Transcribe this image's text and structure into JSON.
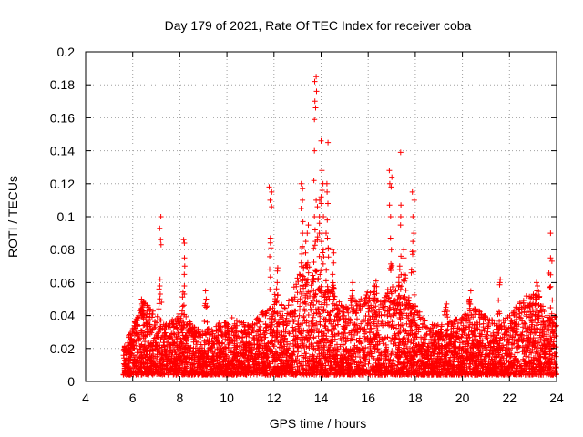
{
  "chart_data": {
    "type": "scatter",
    "title": "Day 179 of 2021, Rate Of TEC Index for receiver coba",
    "xlabel": "GPS time / hours",
    "ylabel": "ROTI / TECUs",
    "xlim": [
      4,
      24
    ],
    "ylim": [
      0,
      0.2
    ],
    "xticks": [
      "4",
      "6",
      "8",
      "10",
      "12",
      "14",
      "16",
      "18",
      "20",
      "22",
      "24"
    ],
    "yticks": [
      "0",
      "0.02",
      "0.04",
      "0.06",
      "0.08",
      "0.1",
      "0.12",
      "0.14",
      "0.16",
      "0.18",
      "0.2"
    ],
    "grid": true,
    "marker": "+",
    "series": [
      {
        "color": "#ff0000",
        "baseline": {
          "x_start": 5.6,
          "x_end": 24.0,
          "typical_y_range": [
            0.005,
            0.03
          ],
          "envelope": [
            [
              5.6,
              0.02
            ],
            [
              6.0,
              0.035
            ],
            [
              6.5,
              0.05
            ],
            [
              7.0,
              0.04
            ],
            [
              7.5,
              0.035
            ],
            [
              8.0,
              0.045
            ],
            [
              8.5,
              0.035
            ],
            [
              9.0,
              0.03
            ],
            [
              10.0,
              0.04
            ],
            [
              11.0,
              0.035
            ],
            [
              12.0,
              0.05
            ],
            [
              12.5,
              0.045
            ],
            [
              13.0,
              0.065
            ],
            [
              13.5,
              0.07
            ],
            [
              14.0,
              0.06
            ],
            [
              14.5,
              0.055
            ],
            [
              15.0,
              0.045
            ],
            [
              15.5,
              0.05
            ],
            [
              16.0,
              0.055
            ],
            [
              16.5,
              0.05
            ],
            [
              17.0,
              0.06
            ],
            [
              17.5,
              0.055
            ],
            [
              18.0,
              0.05
            ],
            [
              18.5,
              0.035
            ],
            [
              19.0,
              0.035
            ],
            [
              20.0,
              0.04
            ],
            [
              20.5,
              0.045
            ],
            [
              21.0,
              0.04
            ],
            [
              21.5,
              0.035
            ],
            [
              22.0,
              0.04
            ],
            [
              22.5,
              0.05
            ],
            [
              23.0,
              0.055
            ],
            [
              23.5,
              0.045
            ],
            [
              24.0,
              0.04
            ]
          ]
        },
        "spikes": [
          {
            "x": 7.15,
            "y": [
              0.1,
              0.093,
              0.086,
              0.083,
              0.062,
              0.058
            ]
          },
          {
            "x": 8.15,
            "y": [
              0.086,
              0.084,
              0.075,
              0.07,
              0.065,
              0.058
            ]
          },
          {
            "x": 11.85,
            "y": [
              0.118,
              0.115,
              0.11,
              0.106,
              0.087
            ]
          },
          {
            "x": 12.1,
            "y": [
              0.069,
              0.067,
              0.06
            ]
          },
          {
            "x": 13.2,
            "y": [
              0.12,
              0.117,
              0.11,
              0.105,
              0.097,
              0.09,
              0.082
            ]
          },
          {
            "x": 13.4,
            "y": [
              0.095,
              0.09,
              0.085,
              0.078,
              0.072
            ]
          },
          {
            "x": 13.75,
            "y": [
              0.185,
              0.182,
              0.176,
              0.17,
              0.166,
              0.159,
              0.14,
              0.122,
              0.11,
              0.1,
              0.092,
              0.085
            ]
          },
          {
            "x": 13.9,
            "y": [
              0.11,
              0.106,
              0.1,
              0.096,
              0.09
            ]
          },
          {
            "x": 14.05,
            "y": [
              0.146,
              0.128,
              0.12,
              0.116,
              0.112,
              0.108,
              0.1,
              0.09,
              0.085
            ]
          },
          {
            "x": 14.25,
            "y": [
              0.145,
              0.12,
              0.115,
              0.108,
              0.098,
              0.09,
              0.087
            ]
          },
          {
            "x": 14.5,
            "y": [
              0.08,
              0.078,
              0.072,
              0.065
            ]
          },
          {
            "x": 16.95,
            "y": [
              0.128,
              0.124,
              0.12,
              0.118,
              0.107,
              0.1,
              0.087,
              0.08
            ]
          },
          {
            "x": 17.35,
            "y": [
              0.139,
              0.107,
              0.1,
              0.095,
              0.076,
              0.07,
              0.068
            ]
          },
          {
            "x": 17.55,
            "y": [
              0.08,
              0.075,
              0.065
            ]
          },
          {
            "x": 17.9,
            "y": [
              0.115,
              0.11,
              0.1,
              0.09,
              0.085,
              0.079
            ]
          },
          {
            "x": 21.55,
            "y": [
              0.062,
              0.06
            ]
          },
          {
            "x": 23.75,
            "y": [
              0.09,
              0.075,
              0.073
            ]
          },
          {
            "x": 6.4,
            "y": [
              0.05,
              0.048,
              0.045
            ]
          },
          {
            "x": 9.1,
            "y": [
              0.055,
              0.05
            ]
          },
          {
            "x": 15.3,
            "y": [
              0.06,
              0.055,
              0.052
            ]
          },
          {
            "x": 16.3,
            "y": [
              0.061,
              0.058
            ]
          },
          {
            "x": 19.3,
            "y": [
              0.047,
              0.045
            ]
          },
          {
            "x": 20.3,
            "y": [
              0.055,
              0.05
            ]
          },
          {
            "x": 23.2,
            "y": [
              0.06,
              0.058,
              0.055
            ]
          }
        ]
      }
    ]
  }
}
